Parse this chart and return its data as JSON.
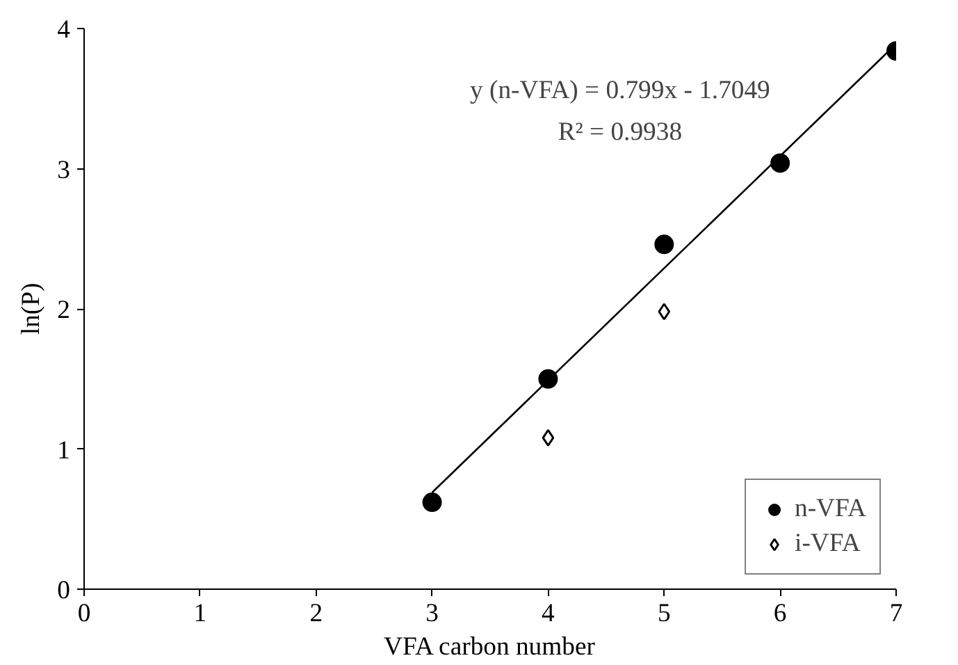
{
  "chart_data": {
    "type": "scatter",
    "xlabel": "VFA carbon number",
    "ylabel": "ln(P)",
    "xlim": [
      0,
      7
    ],
    "ylim": [
      0,
      4
    ],
    "xticks": [
      0,
      1,
      2,
      3,
      4,
      5,
      6,
      7
    ],
    "yticks": [
      0,
      1,
      2,
      3,
      4
    ],
    "grid": false,
    "legend": "bottom right",
    "annotations": [
      "y (n-VFA) = 0.799x - 1.7049",
      "R² = 0.9938"
    ],
    "series": [
      {
        "name": "n-VFA",
        "color": "#000000",
        "marker": "circle",
        "x": [
          3,
          4,
          5,
          6,
          7
        ],
        "values": [
          0.62,
          1.5,
          2.46,
          3.04,
          3.84
        ]
      },
      {
        "name": "i-VFA",
        "color": "#000000",
        "marker": "diamond",
        "x": [
          4,
          5
        ],
        "values": [
          1.08,
          1.98
        ]
      },
      {
        "type": "line",
        "color": "#000000",
        "x": [
          3,
          7
        ],
        "values": [
          0.69,
          3.89
        ]
      }
    ]
  }
}
